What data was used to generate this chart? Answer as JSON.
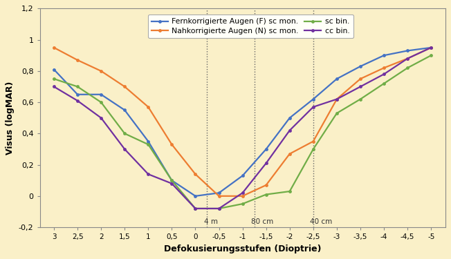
{
  "xlabel": "Defokusierungsstufen (Dioptrie)",
  "ylabel": "Visus (logMAR)",
  "background_color": "#FAF0C8",
  "x_values": [
    3,
    2.5,
    2,
    1.5,
    1,
    0.5,
    0,
    -0.5,
    -1,
    -1.5,
    -2,
    -2.5,
    -3,
    -3.5,
    -4,
    -4.5,
    -5
  ],
  "series": [
    {
      "label": "Fernkorrigierte Augen (F) sc mon.",
      "color": "#4472C4",
      "data": [
        0.81,
        0.65,
        0.65,
        0.55,
        0.35,
        0.1,
        0.0,
        0.02,
        0.13,
        0.3,
        0.5,
        0.62,
        0.75,
        0.83,
        0.9,
        0.93,
        0.95
      ]
    },
    {
      "label": "Nahkorrigierte Augen (N) sc mon.",
      "color": "#ED7D31",
      "data": [
        0.95,
        0.87,
        0.8,
        0.7,
        0.57,
        0.33,
        0.14,
        0.0,
        0.0,
        0.07,
        0.27,
        0.35,
        0.62,
        0.75,
        0.82,
        0.88,
        0.95
      ]
    },
    {
      "label": "sc bin.",
      "color": "#70AD47",
      "data": [
        0.75,
        0.7,
        0.6,
        0.4,
        0.33,
        0.1,
        -0.08,
        -0.08,
        -0.05,
        0.01,
        0.03,
        0.3,
        0.53,
        0.62,
        0.72,
        0.82,
        0.9
      ]
    },
    {
      "label": "cc bin.",
      "color": "#7030A0",
      "data": [
        0.7,
        0.61,
        0.5,
        0.3,
        0.14,
        0.08,
        -0.08,
        -0.08,
        0.02,
        0.21,
        0.42,
        0.57,
        0.62,
        0.7,
        0.78,
        0.88,
        0.95
      ]
    }
  ],
  "vlines": [
    -0.25,
    -1.25,
    -2.5
  ],
  "vline_labels": [
    "4 m",
    "80 cm",
    "40 cm"
  ],
  "ylim": [
    -0.2,
    1.2
  ],
  "yticks": [
    -0.2,
    0,
    0.2,
    0.4,
    0.6,
    0.8,
    1.0,
    1.2
  ],
  "ytick_labels": [
    "-0,2",
    "0",
    "0,2",
    "0,4",
    "0,6",
    "0,8",
    "1",
    "1,2"
  ],
  "xticks": [
    3,
    2.5,
    2,
    1.5,
    1,
    0.5,
    0,
    -0.5,
    -1,
    -1.5,
    -2,
    -2.5,
    -3,
    -3.5,
    -4,
    -4.5,
    -5
  ],
  "xtick_labels": [
    "3",
    "2,5",
    "2",
    "1,5",
    "1",
    "0,5",
    "0",
    "-0,5",
    "-1",
    "-1,5",
    "-2",
    "-2,5",
    "-3",
    "-3,5",
    "-4",
    "-4,5",
    "-5"
  ]
}
